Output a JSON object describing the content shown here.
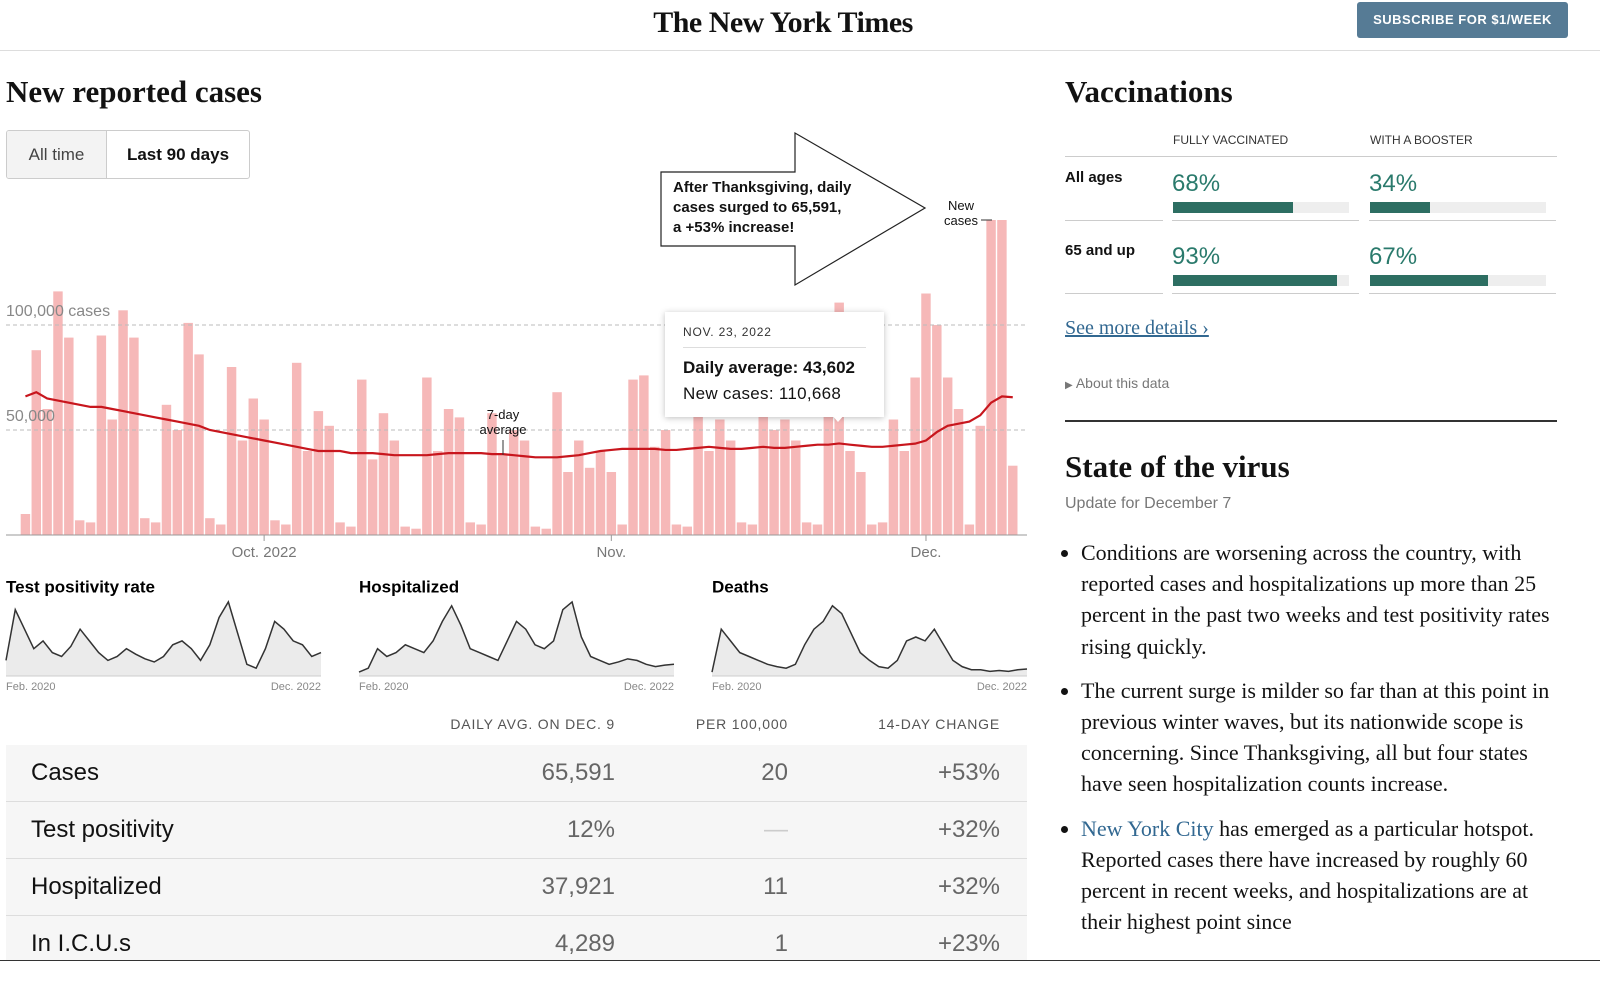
{
  "header": {
    "logo": "The New York Times",
    "subscribe": "SUBSCRIBE FOR $1/WEEK"
  },
  "cases_panel": {
    "title": "New reported cases",
    "tabs": [
      "All time",
      "Last 90 days"
    ],
    "callout": [
      "After Thanksgiving, daily",
      "cases surged to 65,591,",
      "a +53% increase!"
    ],
    "tooltip": {
      "date": "NOV. 23, 2022",
      "lines": [
        "Daily average: 43,602",
        "New cases: 110,668"
      ]
    }
  },
  "chart_data": [
    {
      "type": "bar",
      "categories": [
        null,
        null,
        null,
        null,
        null,
        null,
        null,
        null,
        null,
        null,
        null,
        null,
        null,
        null,
        null,
        null,
        null,
        null,
        null,
        null,
        null,
        null,
        "Oct. 2022",
        null,
        null,
        null,
        null,
        null,
        null,
        null,
        null,
        null,
        null,
        null,
        null,
        null,
        null,
        null,
        null,
        null,
        null,
        null,
        null,
        null,
        null,
        null,
        null,
        null,
        null,
        null,
        null,
        null,
        null,
        null,
        "Nov.",
        null,
        null,
        null,
        null,
        null,
        null,
        null,
        null,
        null,
        null,
        null,
        null,
        null,
        null,
        null,
        null,
        null,
        null,
        null,
        null,
        null,
        null,
        null,
        null,
        null,
        null,
        null,
        null,
        "Dec.",
        null,
        null,
        null,
        null,
        null,
        null,
        null,
        null
      ],
      "series": [
        {
          "name": "New cases",
          "color": "#f6b8b8",
          "values": [
            10000,
            88000,
            60000,
            116000,
            94000,
            7000,
            6000,
            95000,
            55000,
            107000,
            94000,
            8000,
            6000,
            62000,
            50000,
            101000,
            86000,
            8000,
            5000,
            80000,
            45000,
            65000,
            55000,
            7000,
            5000,
            82000,
            40000,
            59000,
            52000,
            6000,
            4000,
            74000,
            36000,
            58000,
            45000,
            4000,
            3000,
            75000,
            40000,
            60000,
            56000,
            6000,
            5000,
            58000,
            38000,
            50000,
            45000,
            4000,
            3000,
            68000,
            30000,
            45000,
            32000,
            40000,
            30000,
            5000,
            74000,
            76000,
            42000,
            50000,
            5000,
            4000,
            65000,
            40000,
            55000,
            45000,
            6000,
            5000,
            62000,
            50000,
            55000,
            45000,
            6000,
            5000,
            60000,
            110668,
            40000,
            30000,
            5000,
            6000,
            55000,
            40000,
            75000,
            115000,
            100000,
            75000,
            60000,
            5000,
            52000,
            150000,
            150000,
            33000
          ]
        },
        {
          "name": "7-day average",
          "type": "line",
          "color": "#c8161d",
          "values": [
            66000,
            68000,
            65000,
            64000,
            63000,
            62000,
            61000,
            61000,
            60000,
            59000,
            58000,
            57000,
            56000,
            55000,
            54000,
            53000,
            52000,
            50000,
            49000,
            48000,
            47000,
            46000,
            45000,
            44000,
            43000,
            42000,
            41000,
            40000,
            40000,
            40000,
            39000,
            39000,
            39000,
            38500,
            38000,
            38000,
            38000,
            38000,
            38500,
            39000,
            39000,
            39000,
            39000,
            38500,
            38500,
            38000,
            37500,
            37000,
            37000,
            37000,
            37500,
            38000,
            39000,
            40000,
            40500,
            41000,
            41000,
            41000,
            41000,
            40500,
            40500,
            41000,
            41500,
            42000,
            41500,
            41000,
            41000,
            41500,
            42000,
            41500,
            41500,
            42000,
            42500,
            43000,
            43000,
            43602,
            43000,
            42500,
            42000,
            42000,
            42500,
            43000,
            43500,
            45000,
            49000,
            52000,
            53000,
            54000,
            57000,
            63000,
            66000,
            65591
          ]
        }
      ],
      "ylim": [
        0,
        155000
      ],
      "yticks": [
        {
          "value": 50000,
          "label": "50,000"
        },
        {
          "value": 100000,
          "label": "100,000 cases"
        }
      ],
      "grid": true
    },
    {
      "type": "area",
      "title": "Test positivity rate",
      "color": "#333333",
      "ylim": [
        0,
        100
      ],
      "categories": [
        "Feb. 2020",
        null,
        null,
        null,
        null,
        null,
        null,
        null,
        null,
        null,
        null,
        null,
        null,
        null,
        null,
        null,
        null,
        null,
        null,
        null,
        null,
        null,
        null,
        null,
        null,
        null,
        null,
        null,
        null,
        null,
        null,
        null,
        null,
        null,
        "Dec. 2022"
      ],
      "values": [
        20,
        85,
        60,
        35,
        45,
        30,
        25,
        38,
        60,
        45,
        30,
        20,
        25,
        35,
        28,
        22,
        18,
        25,
        40,
        45,
        35,
        20,
        40,
        75,
        95,
        55,
        15,
        10,
        35,
        70,
        60,
        45,
        40,
        25,
        30
      ]
    },
    {
      "type": "area",
      "title": "Hospitalized",
      "color": "#333333",
      "ylim": [
        0,
        100
      ],
      "categories": [
        "Feb. 2020",
        null,
        null,
        null,
        null,
        null,
        null,
        null,
        null,
        null,
        null,
        null,
        null,
        null,
        null,
        null,
        null,
        null,
        null,
        null,
        null,
        null,
        null,
        null,
        null,
        null,
        null,
        null,
        null,
        null,
        null,
        null,
        null,
        null,
        "Dec. 2022"
      ],
      "values": [
        5,
        10,
        35,
        25,
        30,
        40,
        35,
        30,
        45,
        70,
        90,
        65,
        35,
        30,
        25,
        20,
        45,
        70,
        60,
        40,
        35,
        45,
        85,
        95,
        50,
        25,
        20,
        15,
        18,
        22,
        20,
        15,
        12,
        14,
        15
      ]
    },
    {
      "type": "area",
      "title": "Deaths",
      "color": "#333333",
      "ylim": [
        0,
        100
      ],
      "categories": [
        "Feb. 2020",
        null,
        null,
        null,
        null,
        null,
        null,
        null,
        null,
        null,
        null,
        null,
        null,
        null,
        null,
        null,
        null,
        null,
        null,
        null,
        null,
        null,
        null,
        null,
        null,
        null,
        null,
        null,
        null,
        null,
        null,
        null,
        null,
        null,
        "Dec. 2022"
      ],
      "values": [
        5,
        60,
        45,
        30,
        25,
        20,
        15,
        12,
        10,
        15,
        40,
        60,
        70,
        90,
        80,
        55,
        30,
        20,
        12,
        10,
        20,
        45,
        50,
        45,
        60,
        40,
        20,
        12,
        8,
        8,
        6,
        7,
        6,
        8,
        9
      ]
    }
  ],
  "table": {
    "header": [
      "DAILY AVG. ON DEC. 9",
      "PER 100,000",
      "14-DAY CHANGE"
    ],
    "rows": [
      [
        "Cases",
        "65,591",
        "20",
        "+53%"
      ],
      [
        "Test positivity",
        "12%",
        "—",
        "+32%"
      ],
      [
        "Hospitalized",
        "37,921",
        "11",
        "+32%"
      ],
      [
        "In I.C.U.s",
        "4,289",
        "1",
        "+23%"
      ]
    ]
  },
  "vaccinations": {
    "title": "Vaccinations",
    "columns": [
      "FULLY VACCINATED",
      "WITH A BOOSTER"
    ],
    "xlim": [
      0,
      100
    ],
    "color": "#2d6e62",
    "rows": [
      {
        "label": "All ages",
        "values": [
          68,
          34
        ],
        "value_labels": [
          "68%",
          "34%"
        ]
      },
      {
        "label": "65 and up",
        "values": [
          93,
          67
        ],
        "value_labels": [
          "93%",
          "67%"
        ]
      }
    ],
    "details_link": "See more details ›",
    "about": "About this data"
  },
  "state": {
    "title": "State of the virus",
    "update": "Update for December 7",
    "bullets": [
      "Conditions are worsening across the country, with reported cases and hospitalizations up more than 25 percent in the past two weeks and test positivity rates rising quickly.",
      "The current surge is milder so far than at this point in previous winter waves, but its nationwide scope is concerning. Since Thanksgiving, all but four states have seen hospitalization counts increase."
    ],
    "link_bullet": {
      "link": "New York City",
      "text": "has emerged as a particular hotspot. Reported cases there have increased by roughly 60 percent in recent weeks, and hospitalizations are at their highest point since"
    }
  }
}
